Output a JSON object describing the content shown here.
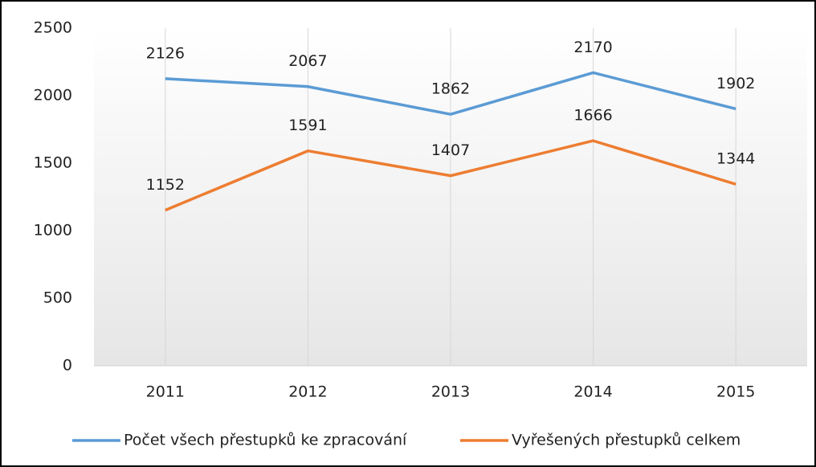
{
  "chart_data": {
    "type": "line",
    "categories": [
      "2011",
      "2012",
      "2013",
      "2014",
      "2015"
    ],
    "series": [
      {
        "name": "Počet všech přestupků ke zpracování",
        "color": "#5b9bd5",
        "values": [
          2126,
          2067,
          1862,
          2170,
          1902
        ]
      },
      {
        "name": "Vyřešených přestupků celkem",
        "color": "#ed7d31",
        "values": [
          1152,
          1591,
          1407,
          1666,
          1344
        ]
      }
    ],
    "ylim": [
      0,
      2500
    ],
    "yticks": [
      0,
      500,
      1000,
      1500,
      2000,
      2500
    ],
    "grid": "x",
    "legend": "bottom"
  }
}
